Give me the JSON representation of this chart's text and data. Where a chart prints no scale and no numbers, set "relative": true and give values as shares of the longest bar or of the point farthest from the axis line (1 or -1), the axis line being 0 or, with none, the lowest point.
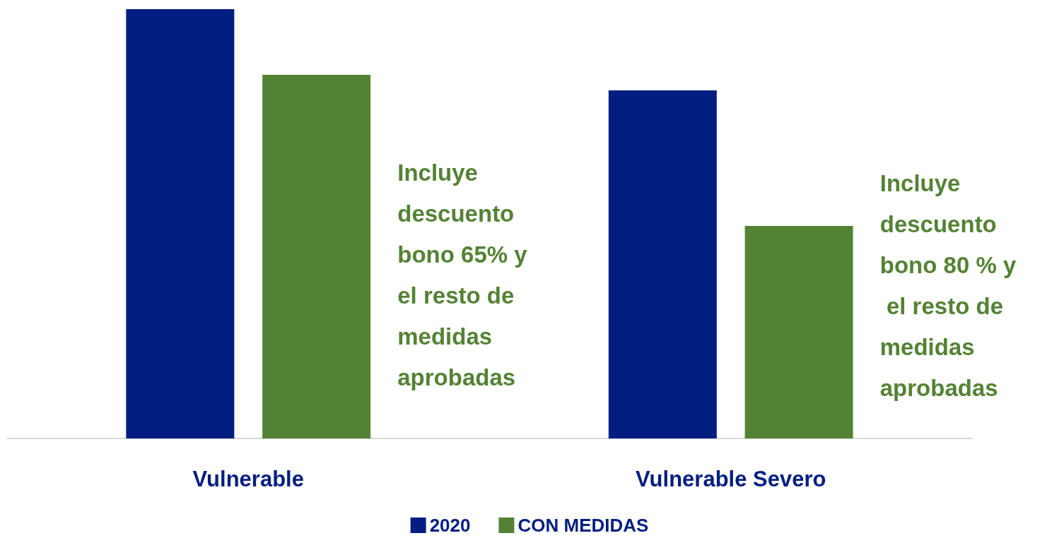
{
  "chart_data": {
    "type": "bar",
    "relative": true,
    "categories": [
      "Vulnerable",
      "Vulnerable Severo"
    ],
    "series": [
      {
        "name": "2020",
        "color": "#021e80",
        "values": [
          1,
          0.811
        ]
      },
      {
        "name": "CON MEDIDAS",
        "color": "#548235",
        "values": [
          0.847,
          0.495
        ]
      }
    ],
    "annotations": [
      "Incluye descuento bono 65% y el resto de medidas aprobadas",
      "Incluye descuento bono 80 % y el resto de medidas aprobadas"
    ],
    "legend": "bottom"
  }
}
